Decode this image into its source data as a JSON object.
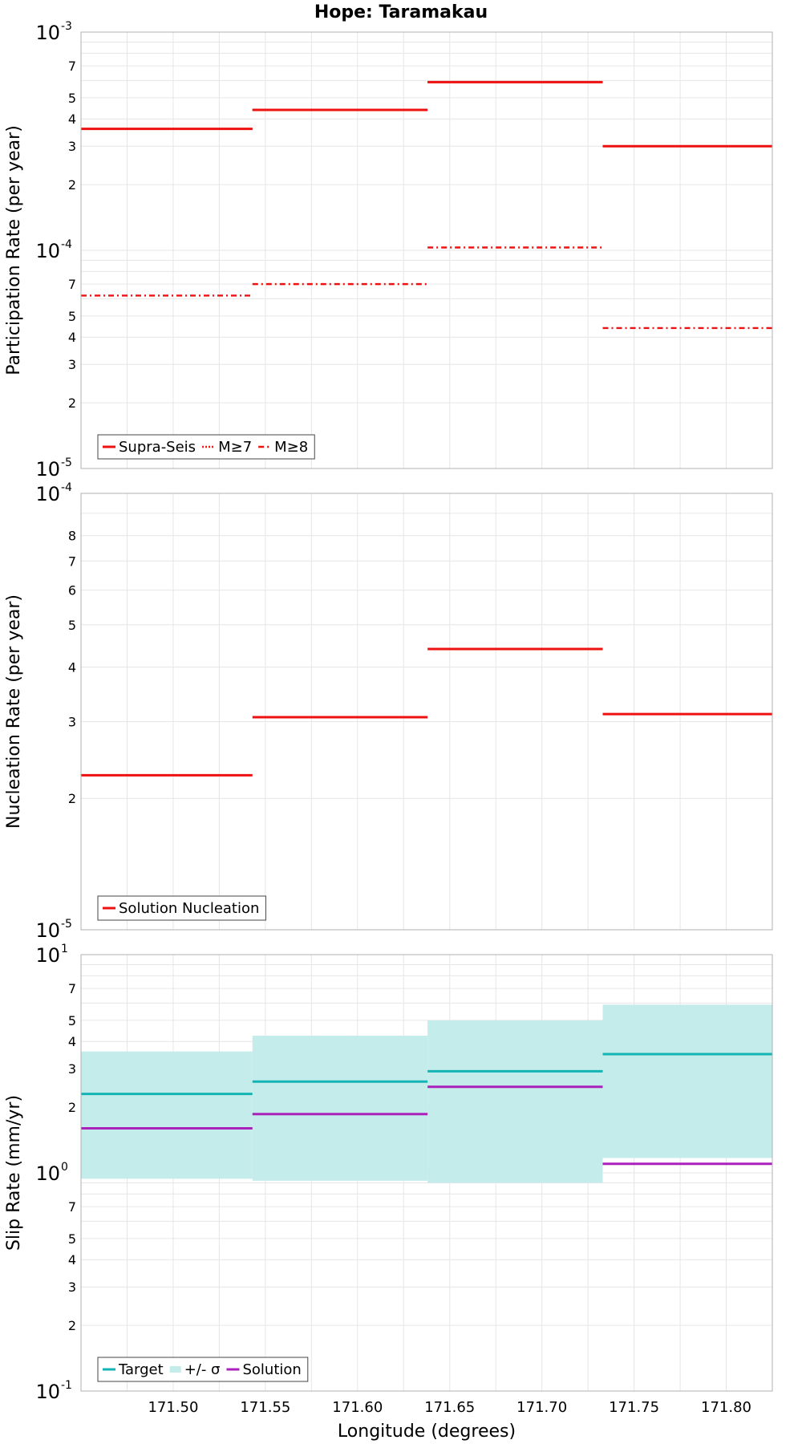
{
  "title": "Hope: Taramakau",
  "xlabel": "Longitude (degrees)",
  "x_ticks": [
    "171.50",
    "171.55",
    "171.60",
    "171.65",
    "171.70",
    "171.75",
    "171.80"
  ],
  "x_tick_values": [
    171.5,
    171.55,
    171.6,
    171.65,
    171.7,
    171.75,
    171.8
  ],
  "xlim": [
    171.45,
    171.825
  ],
  "colors": {
    "red": "#ee1111",
    "teal": "#14b4b4",
    "band": "#c4ecea",
    "purple": "#aa22bb"
  },
  "chart_data": [
    {
      "type": "line",
      "ylabel": "Participation Rate (per year)",
      "yscale": "log",
      "ylim": [
        1e-05,
        0.001
      ],
      "decade_labels": [
        {
          "base": "10",
          "exp": "-5",
          "value": 1e-05
        },
        {
          "base": "10",
          "exp": "-4",
          "value": 0.0001
        },
        {
          "base": "10",
          "exp": "-3",
          "value": 0.001
        }
      ],
      "minor_labels": [
        "2",
        "3",
        "4",
        "5",
        "7"
      ],
      "segments_x": [
        [
          171.45,
          171.543
        ],
        [
          171.543,
          171.638
        ],
        [
          171.638,
          171.733
        ],
        [
          171.733,
          171.825
        ]
      ],
      "series": [
        {
          "name": "Supra-Seis",
          "style": "solid",
          "values": [
            0.00036,
            0.00044,
            0.00059,
            0.0003
          ]
        },
        {
          "name": "M≥7",
          "style": "dotted",
          "values": [
            0.00036,
            0.00044,
            0.00059,
            0.0003
          ]
        },
        {
          "name": "M≥8",
          "style": "dashdot",
          "values": [
            6.2e-05,
            7e-05,
            0.000103,
            4.4e-05
          ]
        }
      ],
      "legend": [
        "Supra-Seis",
        "M≥7",
        "M≥8"
      ],
      "legend_position": "bottom-left"
    },
    {
      "type": "line",
      "ylabel": "Nucleation Rate (per year)",
      "yscale": "log",
      "ylim": [
        1e-05,
        0.0001
      ],
      "decade_labels": [
        {
          "base": "10",
          "exp": "-5",
          "value": 1e-05
        },
        {
          "base": "10",
          "exp": "-4",
          "value": 0.0001
        }
      ],
      "minor_labels": [
        "2",
        "3",
        "4",
        "5",
        "6",
        "7",
        "8"
      ],
      "segments_x": [
        [
          171.45,
          171.543
        ],
        [
          171.543,
          171.638
        ],
        [
          171.638,
          171.733
        ],
        [
          171.733,
          171.825
        ]
      ],
      "series": [
        {
          "name": "Solution Nucleation",
          "style": "solid",
          "values": [
            2.26e-05,
            3.07e-05,
            4.4e-05,
            3.12e-05
          ]
        }
      ],
      "legend": [
        "Solution Nucleation"
      ],
      "legend_position": "bottom-left"
    },
    {
      "type": "area",
      "ylabel": "Slip Rate (mm/yr)",
      "yscale": "log",
      "ylim": [
        0.1,
        10
      ],
      "decade_labels": [
        {
          "base": "10",
          "exp": "-1",
          "value": 0.1
        },
        {
          "base": "10",
          "exp": "0",
          "value": 1
        },
        {
          "base": "10",
          "exp": "1",
          "value": 10
        }
      ],
      "minor_labels": [
        "2",
        "3",
        "4",
        "5",
        "7"
      ],
      "segments_x": [
        [
          171.45,
          171.543
        ],
        [
          171.543,
          171.638
        ],
        [
          171.638,
          171.733
        ],
        [
          171.733,
          171.825
        ]
      ],
      "band_low": [
        0.94,
        0.92,
        0.9,
        1.17
      ],
      "band_high": [
        3.6,
        4.25,
        5.0,
        5.9
      ],
      "series": [
        {
          "name": "Target",
          "style": "solid",
          "values": [
            2.3,
            2.62,
            2.92,
            3.5
          ]
        },
        {
          "name": "Solution",
          "style": "solid",
          "values": [
            1.6,
            1.86,
            2.48,
            1.1
          ]
        }
      ],
      "legend": [
        "Target",
        "+/- σ",
        "Solution"
      ],
      "legend_position": "bottom-left"
    }
  ]
}
